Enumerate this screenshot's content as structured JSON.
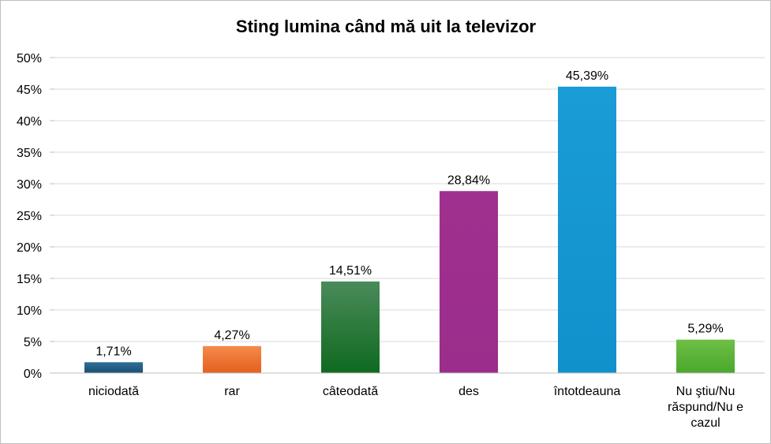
{
  "chart_data": {
    "type": "bar",
    "title": "Sting lumina când mă uit la televizor",
    "xlabel": "",
    "ylabel": "",
    "categories": [
      "niciodată",
      "rar",
      "câteodată",
      "des",
      "întotdeauna",
      "Nu ştiu/Nu răspund/Nu e cazul"
    ],
    "category_lines": [
      [
        "niciodată"
      ],
      [
        "rar"
      ],
      [
        "câteodată"
      ],
      [
        "des"
      ],
      [
        "întotdeauna"
      ],
      [
        "Nu ştiu/Nu",
        "răspund/Nu e",
        "cazul"
      ]
    ],
    "values": [
      1.71,
      4.27,
      14.51,
      28.84,
      45.39,
      5.29
    ],
    "value_labels": [
      "1,71%",
      "4,27%",
      "14,51%",
      "28,84%",
      "45,39%",
      "5,29%"
    ],
    "bar_colors": [
      [
        "#2e6e96",
        "#1b4f72"
      ],
      [
        "#f58a4b",
        "#e2601e"
      ],
      [
        "#4a8a5a",
        "#0f6a1f"
      ],
      [
        "#a0308f",
        "#9b2d8c"
      ],
      [
        "#1a9cd6",
        "#1191cc"
      ],
      [
        "#6fbf45",
        "#49a82c"
      ]
    ],
    "ylim": [
      0,
      50
    ],
    "yticks": [
      0,
      5,
      10,
      15,
      20,
      25,
      30,
      35,
      40,
      45,
      50
    ],
    "ytick_labels": [
      "0%",
      "5%",
      "10%",
      "15%",
      "20%",
      "25%",
      "30%",
      "35%",
      "40%",
      "45%",
      "50%"
    ],
    "grid": true,
    "gridline_color": "#d9d9d9",
    "legend": "none"
  }
}
